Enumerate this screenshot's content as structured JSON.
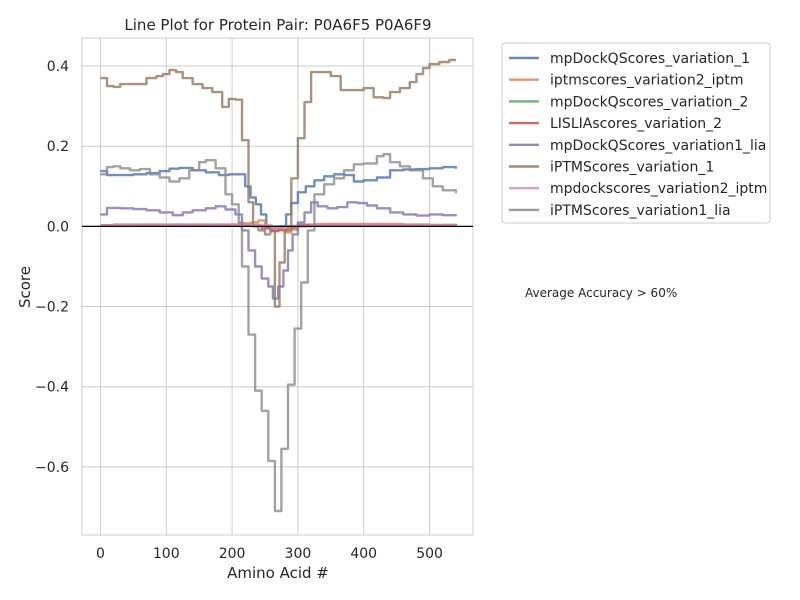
{
  "chart_data": {
    "type": "line",
    "title": "Line Plot for Protein Pair: P0A6F5 P0A6F9",
    "xlabel": "Amino Acid #",
    "ylabel": "Score",
    "xlim": [
      -28,
      566
    ],
    "ylim": [
      -0.77,
      0.47
    ],
    "xticks": [
      0,
      100,
      200,
      300,
      400,
      500
    ],
    "yticks": [
      0.4,
      0.2,
      0.0,
      -0.2,
      -0.4,
      -0.6
    ],
    "ytick_labels": [
      "0.4",
      "0.2",
      "0.0",
      "−0.2",
      "−0.4",
      "−0.6"
    ],
    "grid": true,
    "legend_position": "outside-right-top",
    "annotation": "Average Accuracy > 60%",
    "series": [
      {
        "name": "mpDockQScores_variation_1",
        "color": "#4c72b0",
        "points": [
          [
            0,
            0.138
          ],
          [
            10,
            0.128
          ],
          [
            30,
            0.128
          ],
          [
            50,
            0.13
          ],
          [
            70,
            0.133
          ],
          [
            90,
            0.138
          ],
          [
            105,
            0.144
          ],
          [
            120,
            0.146
          ],
          [
            140,
            0.14
          ],
          [
            160,
            0.135
          ],
          [
            180,
            0.128
          ],
          [
            195,
            0.13
          ],
          [
            210,
            0.13
          ],
          [
            220,
            0.1
          ],
          [
            228,
            0.072
          ],
          [
            236,
            0.055
          ],
          [
            244,
            0.03
          ],
          [
            252,
            -0.002
          ],
          [
            262,
            -0.005
          ],
          [
            272,
            0.0
          ],
          [
            282,
            0.03
          ],
          [
            290,
            0.058
          ],
          [
            300,
            0.085
          ],
          [
            312,
            0.1
          ],
          [
            325,
            0.115
          ],
          [
            340,
            0.125
          ],
          [
            355,
            0.13
          ],
          [
            370,
            0.128
          ],
          [
            385,
            0.112
          ],
          [
            400,
            0.115
          ],
          [
            420,
            0.122
          ],
          [
            440,
            0.14
          ],
          [
            460,
            0.142
          ],
          [
            480,
            0.143
          ],
          [
            500,
            0.145
          ],
          [
            520,
            0.148
          ],
          [
            540,
            0.144
          ]
        ]
      },
      {
        "name": "iptmscores_variation2_iptm",
        "color": "#dd8452",
        "points": [
          [
            0,
            0.003
          ],
          [
            20,
            0.005
          ],
          [
            60,
            0.005
          ],
          [
            100,
            0.005
          ],
          [
            140,
            0.005
          ],
          [
            180,
            0.005
          ],
          [
            210,
            0.008
          ],
          [
            230,
            0.01
          ],
          [
            240,
            0.015
          ],
          [
            250,
            0.002
          ],
          [
            260,
            -0.005
          ],
          [
            270,
            -0.01
          ],
          [
            280,
            -0.015
          ],
          [
            290,
            -0.008
          ],
          [
            300,
            0.005
          ],
          [
            330,
            0.006
          ],
          [
            380,
            0.006
          ],
          [
            420,
            0.006
          ],
          [
            460,
            0.005
          ],
          [
            500,
            0.004
          ],
          [
            540,
            0.003
          ]
        ]
      },
      {
        "name": "mpDockQscores_variation_2",
        "color": "#55a868",
        "points": [
          [
            0,
            0.002
          ],
          [
            50,
            0.003
          ],
          [
            100,
            0.003
          ],
          [
            150,
            0.003
          ],
          [
            200,
            0.003
          ],
          [
            240,
            0.002
          ],
          [
            260,
            0.0
          ],
          [
            280,
            0.001
          ],
          [
            320,
            0.003
          ],
          [
            380,
            0.003
          ],
          [
            440,
            0.003
          ],
          [
            500,
            0.002
          ],
          [
            540,
            0.002
          ]
        ]
      },
      {
        "name": "LISLIAscores_variation_2",
        "color": "#c44e52",
        "points": [
          [
            0,
            0.002
          ],
          [
            50,
            0.003
          ],
          [
            100,
            0.003
          ],
          [
            150,
            0.003
          ],
          [
            200,
            0.004
          ],
          [
            230,
            0.002
          ],
          [
            245,
            -0.005
          ],
          [
            260,
            -0.012
          ],
          [
            270,
            -0.008
          ],
          [
            285,
            -0.003
          ],
          [
            300,
            0.002
          ],
          [
            340,
            0.004
          ],
          [
            400,
            0.004
          ],
          [
            460,
            0.003
          ],
          [
            540,
            0.002
          ]
        ]
      },
      {
        "name": "mpDockQScores_variation1_lia",
        "color": "#8172b3",
        "points": [
          [
            0,
            0.03
          ],
          [
            10,
            0.046
          ],
          [
            30,
            0.045
          ],
          [
            50,
            0.043
          ],
          [
            70,
            0.04
          ],
          [
            90,
            0.035
          ],
          [
            110,
            0.028
          ],
          [
            125,
            0.035
          ],
          [
            140,
            0.04
          ],
          [
            160,
            0.045
          ],
          [
            175,
            0.05
          ],
          [
            190,
            0.042
          ],
          [
            205,
            0.03
          ],
          [
            215,
            -0.01
          ],
          [
            225,
            -0.06
          ],
          [
            235,
            -0.1
          ],
          [
            245,
            -0.13
          ],
          [
            255,
            -0.15
          ],
          [
            262,
            -0.18
          ],
          [
            270,
            -0.15
          ],
          [
            278,
            -0.11
          ],
          [
            285,
            -0.06
          ],
          [
            292,
            -0.02
          ],
          [
            300,
            0.01
          ],
          [
            310,
            0.035
          ],
          [
            320,
            0.06
          ],
          [
            330,
            0.05
          ],
          [
            345,
            0.045
          ],
          [
            360,
            0.048
          ],
          [
            375,
            0.06
          ],
          [
            390,
            0.058
          ],
          [
            405,
            0.052
          ],
          [
            420,
            0.045
          ],
          [
            440,
            0.035
          ],
          [
            460,
            0.03
          ],
          [
            480,
            0.027
          ],
          [
            500,
            0.03
          ],
          [
            520,
            0.028
          ],
          [
            540,
            0.03
          ]
        ]
      },
      {
        "name": "iPTMScores_variation_1",
        "color": "#937860",
        "points": [
          [
            0,
            0.37
          ],
          [
            10,
            0.35
          ],
          [
            20,
            0.348
          ],
          [
            30,
            0.355
          ],
          [
            50,
            0.355
          ],
          [
            70,
            0.37
          ],
          [
            85,
            0.375
          ],
          [
            95,
            0.38
          ],
          [
            105,
            0.39
          ],
          [
            115,
            0.385
          ],
          [
            125,
            0.37
          ],
          [
            140,
            0.355
          ],
          [
            155,
            0.345
          ],
          [
            170,
            0.335
          ],
          [
            185,
            0.298
          ],
          [
            195,
            0.318
          ],
          [
            205,
            0.316
          ],
          [
            215,
            0.215
          ],
          [
            225,
            0.06
          ],
          [
            232,
            0.0
          ],
          [
            240,
            -0.01
          ],
          [
            250,
            -0.02
          ],
          [
            258,
            -0.01
          ],
          [
            265,
            -0.2
          ],
          [
            272,
            -0.09
          ],
          [
            280,
            -0.01
          ],
          [
            290,
            0.12
          ],
          [
            300,
            0.22
          ],
          [
            310,
            0.31
          ],
          [
            320,
            0.385
          ],
          [
            335,
            0.385
          ],
          [
            350,
            0.375
          ],
          [
            365,
            0.34
          ],
          [
            385,
            0.34
          ],
          [
            400,
            0.345
          ],
          [
            415,
            0.322
          ],
          [
            430,
            0.32
          ],
          [
            440,
            0.335
          ],
          [
            455,
            0.345
          ],
          [
            470,
            0.36
          ],
          [
            480,
            0.38
          ],
          [
            490,
            0.395
          ],
          [
            500,
            0.405
          ],
          [
            515,
            0.41
          ],
          [
            530,
            0.415
          ],
          [
            540,
            0.415
          ]
        ]
      },
      {
        "name": "mpdockscores_variation2_iptm",
        "color": "#da8bc3",
        "points": [
          [
            0,
            0.003
          ],
          [
            50,
            0.004
          ],
          [
            100,
            0.004
          ],
          [
            150,
            0.004
          ],
          [
            200,
            0.004
          ],
          [
            240,
            0.002
          ],
          [
            260,
            -0.004
          ],
          [
            280,
            0.0
          ],
          [
            320,
            0.004
          ],
          [
            380,
            0.004
          ],
          [
            440,
            0.004
          ],
          [
            500,
            0.003
          ],
          [
            540,
            0.003
          ]
        ]
      },
      {
        "name": "iPTMScores_variation1_lia",
        "color": "#8c8c8c",
        "points": [
          [
            0,
            0.13
          ],
          [
            10,
            0.148
          ],
          [
            20,
            0.15
          ],
          [
            30,
            0.145
          ],
          [
            45,
            0.14
          ],
          [
            60,
            0.143
          ],
          [
            75,
            0.13
          ],
          [
            90,
            0.122
          ],
          [
            105,
            0.112
          ],
          [
            120,
            0.12
          ],
          [
            135,
            0.14
          ],
          [
            150,
            0.16
          ],
          [
            160,
            0.165
          ],
          [
            175,
            0.145
          ],
          [
            190,
            0.08
          ],
          [
            200,
            0.055
          ],
          [
            210,
            0.01
          ],
          [
            215,
            -0.1
          ],
          [
            225,
            -0.27
          ],
          [
            235,
            -0.41
          ],
          [
            245,
            -0.46
          ],
          [
            255,
            -0.585
          ],
          [
            265,
            -0.71
          ],
          [
            275,
            -0.555
          ],
          [
            285,
            -0.395
          ],
          [
            295,
            -0.255
          ],
          [
            305,
            -0.14
          ],
          [
            315,
            -0.01
          ],
          [
            325,
            0.08
          ],
          [
            340,
            0.105
          ],
          [
            355,
            0.12
          ],
          [
            370,
            0.14
          ],
          [
            385,
            0.155
          ],
          [
            400,
            0.157
          ],
          [
            420,
            0.175
          ],
          [
            430,
            0.18
          ],
          [
            440,
            0.16
          ],
          [
            455,
            0.15
          ],
          [
            470,
            0.14
          ],
          [
            490,
            0.12
          ],
          [
            505,
            0.1
          ],
          [
            520,
            0.09
          ],
          [
            540,
            0.083
          ]
        ]
      }
    ]
  }
}
